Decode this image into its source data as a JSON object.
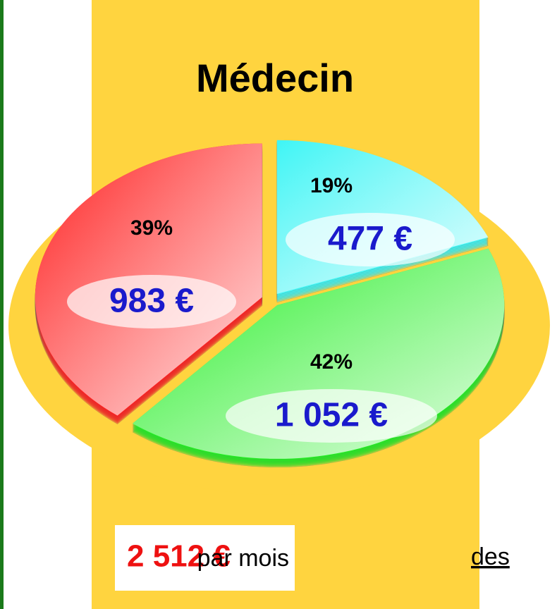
{
  "chart_data": {
    "type": "pie",
    "title": "Médecin",
    "categories": [
      "19%",
      "42%",
      "39%"
    ],
    "values": [
      19,
      42,
      39
    ],
    "value_labels": [
      "19%",
      "42%",
      "39%"
    ],
    "amounts": [
      477,
      1052,
      983
    ],
    "amount_labels": [
      "477 €",
      "1 052 €",
      "983 €"
    ],
    "colors": [
      "#3ff5f5",
      "#22ee22",
      "#ff1f1f"
    ],
    "total_label": "2 512 €",
    "total_value": 2512,
    "total_suffix": "par mois",
    "side_text": "des"
  }
}
